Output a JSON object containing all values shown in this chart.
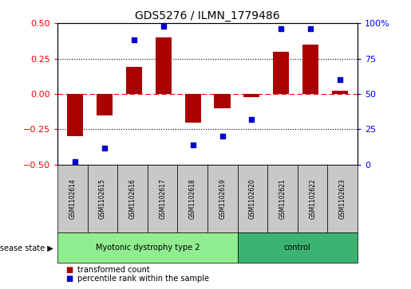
{
  "title": "GDS5276 / ILMN_1779486",
  "samples": [
    "GSM1102614",
    "GSM1102615",
    "GSM1102616",
    "GSM1102617",
    "GSM1102618",
    "GSM1102619",
    "GSM1102620",
    "GSM1102621",
    "GSM1102622",
    "GSM1102623"
  ],
  "bar_values": [
    -0.3,
    -0.15,
    0.19,
    0.4,
    -0.2,
    -0.1,
    -0.02,
    0.3,
    0.35,
    0.02
  ],
  "scatter_values": [
    2,
    12,
    88,
    98,
    14,
    20,
    32,
    96,
    96,
    60
  ],
  "bar_color": "#AA0000",
  "scatter_color": "#0000CC",
  "ylim_left": [
    -0.5,
    0.5
  ],
  "ylim_right": [
    0,
    100
  ],
  "yticks_left": [
    -0.5,
    -0.25,
    0.0,
    0.25,
    0.5
  ],
  "yticks_right": [
    0,
    25,
    50,
    75,
    100
  ],
  "yticklabels_right": [
    "0",
    "25",
    "50",
    "75",
    "100%"
  ],
  "group1_label": "Myotonic dystrophy type 2",
  "group2_label": "control",
  "group1_count": 6,
  "group2_count": 4,
  "disease_state_label": "disease state",
  "legend1_label": "transformed count",
  "legend2_label": "percentile rank within the sample",
  "group1_color": "#90EE90",
  "group2_color": "#3CB371",
  "label_row_color": "#C8C8C8",
  "background_color": "#FFFFFF"
}
